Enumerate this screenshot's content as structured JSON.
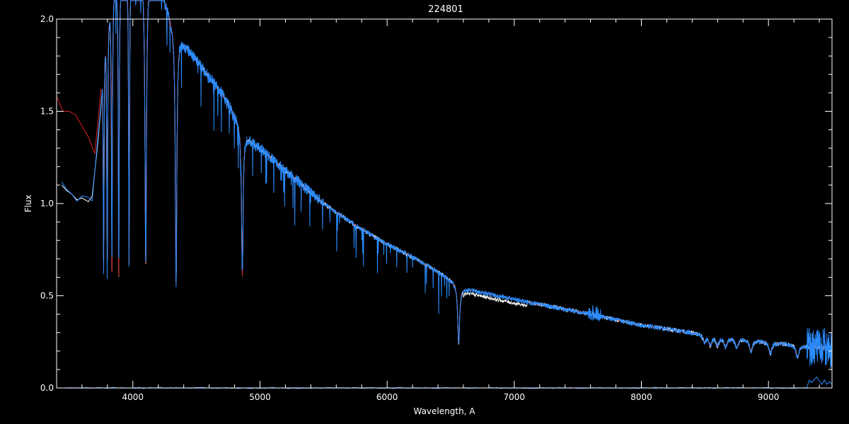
{
  "chart_data": {
    "type": "line",
    "title": "224801",
    "xlabel": "Wavelength, A",
    "ylabel": "Flux",
    "xlim": [
      3400,
      9500
    ],
    "ylim": [
      0,
      2.0
    ],
    "x_ticks": [
      4000,
      5000,
      6000,
      7000,
      8000,
      9000
    ],
    "x_tick_labels": [
      "4000",
      "5000",
      "6000",
      "7000",
      "8000",
      "9000"
    ],
    "y_ticks": [
      0.0,
      0.5,
      1.0,
      1.5,
      2.0
    ],
    "y_tick_labels": [
      "0.0",
      "0.5",
      "1.0",
      "1.5",
      "2.0"
    ],
    "grid": false,
    "colors": {
      "background": "#000000",
      "axes": "#ffffff",
      "observed": "#ffffff",
      "model": "#dd2222",
      "fit": "#2a8cff"
    },
    "continuum": {
      "x": [
        3750,
        3850,
        4000,
        4200,
        4300,
        4400,
        4500,
        4700,
        4900,
        5000,
        5200,
        5500,
        5800,
        6000,
        6200,
        6400,
        6560,
        6600,
        6800,
        7000,
        7300,
        7600,
        7800,
        8000,
        8200,
        8500,
        8800,
        9000,
        9200,
        9400,
        9500
      ],
      "y": [
        1.95,
        2.2,
        2.3,
        2.2,
        2.0,
        1.87,
        1.78,
        1.6,
        1.36,
        1.3,
        1.18,
        1.0,
        0.86,
        0.78,
        0.71,
        0.63,
        0.56,
        0.54,
        0.51,
        0.48,
        0.44,
        0.4,
        0.37,
        0.34,
        0.32,
        0.29,
        0.265,
        0.25,
        0.235,
        0.22,
        0.21
      ]
    },
    "model_blue_end": {
      "x": [
        3400,
        3450,
        3500,
        3550,
        3600,
        3650,
        3700,
        3750
      ],
      "y": [
        1.58,
        1.5,
        1.5,
        1.48,
        1.42,
        1.36,
        1.27,
        1.62
      ]
    },
    "observed_blue_end": {
      "x": [
        3440,
        3480,
        3520,
        3560,
        3600,
        3650,
        3680,
        3720
      ],
      "y": [
        1.1,
        1.07,
        1.05,
        1.02,
        1.03,
        1.01,
        1.04,
        1.3
      ]
    },
    "absorption_lines": {
      "x": [
        3750,
        3770,
        3798,
        3835,
        3889,
        3970,
        4101,
        4340,
        4861,
        6563,
        8498,
        8542,
        8598,
        8662,
        8750,
        8863,
        9015,
        9229
      ],
      "depth": [
        1.2,
        1.3,
        1.4,
        1.5,
        1.6,
        1.6,
        1.6,
        1.4,
        0.8,
        0.32,
        0.04,
        0.05,
        0.05,
        0.05,
        0.05,
        0.06,
        0.06,
        0.07
      ]
    }
  }
}
